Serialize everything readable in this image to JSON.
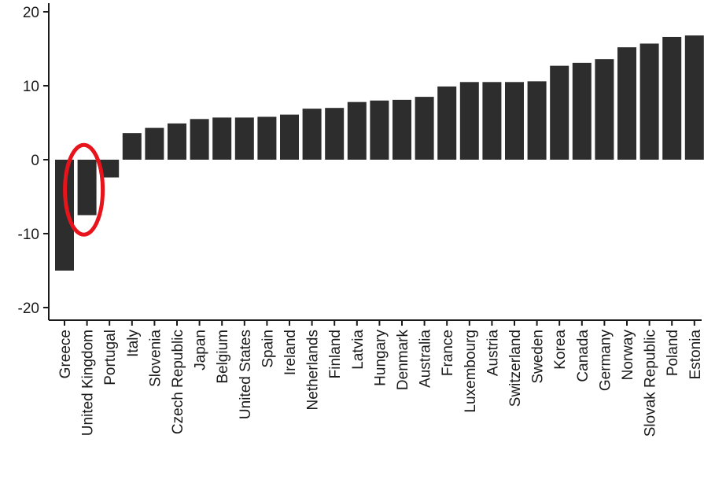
{
  "chart_data": {
    "type": "bar",
    "title": "",
    "xlabel": "",
    "ylabel": "",
    "ylim": [
      -21,
      21
    ],
    "yticks": [
      -20,
      -10,
      0,
      10,
      20
    ],
    "ytick_labels": [
      "-20",
      "-10",
      "0",
      "10",
      "20"
    ],
    "grid": false,
    "legend": "none",
    "bar_color": "#2d2d2d",
    "highlight_color": "#e8141c",
    "highlight_category": "United Kingdom",
    "categories": [
      "Greece",
      "United Kingdom",
      "Portugal",
      "Italy",
      "Slovenia",
      "Czech Republic",
      "Japan",
      "Belgium",
      "United States",
      "Spain",
      "Ireland",
      "Netherlands",
      "Finland",
      "Latvia",
      "Hungary",
      "Denmark",
      "Australia",
      "France",
      "Luxembourg",
      "Austria",
      "Switzerland",
      "Sweden",
      "Korea",
      "Canada",
      "Germany",
      "Norway",
      "Slovak Republic",
      "Poland",
      "Estonia"
    ],
    "values": [
      -15.0,
      -7.5,
      -2.4,
      3.6,
      4.3,
      4.9,
      5.5,
      5.7,
      5.7,
      5.8,
      6.1,
      6.9,
      7.0,
      7.8,
      8.0,
      8.1,
      8.5,
      9.9,
      10.5,
      10.5,
      10.5,
      10.6,
      12.7,
      13.1,
      13.6,
      15.2,
      15.7,
      16.6,
      16.8
    ]
  }
}
